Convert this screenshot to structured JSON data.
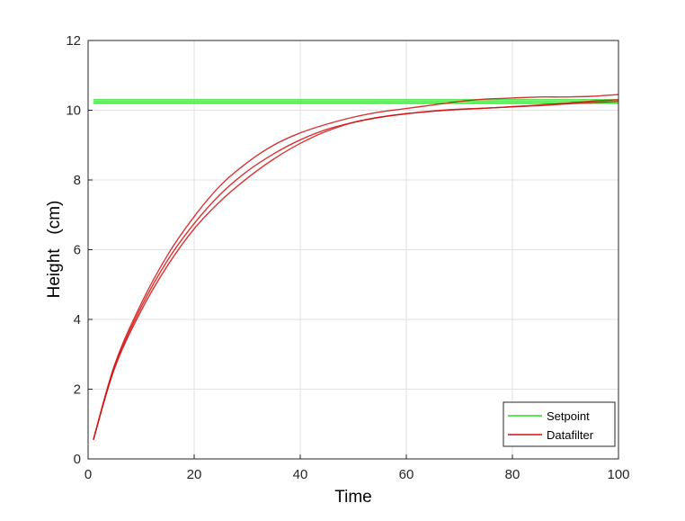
{
  "chart_data": {
    "type": "line",
    "title": "",
    "xlabel": "Time",
    "ylabel": "Height   (cm)",
    "xlim": [
      0,
      100
    ],
    "ylim": [
      0,
      12
    ],
    "xticks": [
      0,
      20,
      40,
      60,
      80,
      100
    ],
    "yticks": [
      0,
      2,
      4,
      6,
      8,
      10,
      12
    ],
    "grid": true,
    "legend_position": "bottom-right",
    "legend": [
      "Setpoint",
      "Datafilter"
    ],
    "series": [
      {
        "name": "Setpoint",
        "color": "#22dd22",
        "x": [
          1,
          100
        ],
        "y": [
          10.2,
          10.2
        ]
      },
      {
        "name": "Setpoint",
        "color": "#22dd22",
        "x": [
          1,
          100
        ],
        "y": [
          10.3,
          10.3
        ]
      },
      {
        "name": "Setpoint",
        "color": "#22dd22",
        "x": [
          1,
          100
        ],
        "y": [
          10.25,
          10.25
        ]
      },
      {
        "name": "Datafilter",
        "color": "#d01010",
        "x": [
          1,
          5,
          10,
          15,
          20,
          25,
          30,
          35,
          40,
          45,
          50,
          55,
          60,
          65,
          70,
          75,
          80,
          85,
          90,
          95,
          100
        ],
        "y": [
          0.55,
          2.6,
          4.25,
          5.55,
          6.6,
          7.4,
          8.05,
          8.6,
          9.05,
          9.4,
          9.65,
          9.8,
          9.9,
          9.98,
          10.03,
          10.06,
          10.1,
          10.13,
          10.18,
          10.22,
          10.25
        ]
      },
      {
        "name": "Datafilter",
        "color": "#d01010",
        "x": [
          1,
          5,
          10,
          15,
          20,
          25,
          30,
          35,
          40,
          45,
          50,
          55,
          60,
          65,
          70,
          75,
          80,
          85,
          90,
          95,
          100
        ],
        "y": [
          0.55,
          2.65,
          4.35,
          5.7,
          6.75,
          7.6,
          8.25,
          8.75,
          9.15,
          9.45,
          9.65,
          9.8,
          9.9,
          9.97,
          10.02,
          10.06,
          10.1,
          10.15,
          10.2,
          10.26,
          10.3
        ]
      },
      {
        "name": "Datafilter",
        "color": "#d01010",
        "x": [
          1,
          5,
          10,
          15,
          20,
          25,
          30,
          35,
          40,
          45,
          50,
          55,
          60,
          65,
          70,
          75,
          80,
          85,
          90,
          95,
          100
        ],
        "y": [
          0.55,
          2.7,
          4.45,
          5.85,
          6.95,
          7.85,
          8.5,
          9.0,
          9.35,
          9.6,
          9.8,
          9.95,
          10.05,
          10.15,
          10.25,
          10.32,
          10.35,
          10.38,
          10.38,
          10.4,
          10.45
        ]
      }
    ]
  }
}
